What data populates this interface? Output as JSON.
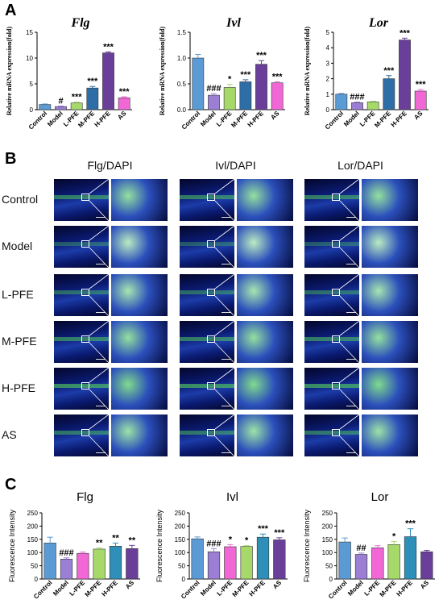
{
  "panels": {
    "a": "A",
    "b": "B",
    "c": "C"
  },
  "section_b": {
    "columns": [
      "Flg/DAPI",
      "Ivl/DAPI",
      "Lor/DAPI"
    ],
    "rows": [
      "Control",
      "Model",
      "L-PFE",
      "M-PFE",
      "H-PFE",
      "AS"
    ]
  },
  "chart_data": [
    {
      "type": "bar",
      "title": "Flg",
      "ylabel": "Relative mRNA expression(fold)",
      "categories": [
        "Control",
        "Model",
        "L-PFE",
        "M-PFE",
        "H-PFE",
        "AS"
      ],
      "values": [
        1.0,
        0.6,
        1.3,
        4.2,
        11.0,
        2.3
      ],
      "errors": [
        0.1,
        0.1,
        0.15,
        0.3,
        0.2,
        0.2
      ],
      "sig": [
        "",
        "#",
        "***",
        "***",
        "***",
        "***"
      ],
      "ylim": [
        0,
        15
      ],
      "yticks": [
        0,
        5,
        10,
        15
      ],
      "colors": [
        "#5b9bd5",
        "#9b7fd4",
        "#a6d96a",
        "#2e6ea6",
        "#6a3f9a",
        "#f067d5"
      ]
    },
    {
      "type": "bar",
      "title": "Ivl",
      "ylabel": "Relative mRNA expression(fold)",
      "categories": [
        "Control",
        "Model",
        "L-PFE",
        "M-PFE",
        "H-PFE",
        "AS"
      ],
      "values": [
        1.0,
        0.28,
        0.43,
        0.54,
        0.88,
        0.52
      ],
      "errors": [
        0.07,
        0.03,
        0.06,
        0.04,
        0.07,
        0.02
      ],
      "sig": [
        "",
        "###",
        "*",
        "***",
        "***",
        "***"
      ],
      "ylim": [
        0,
        1.5
      ],
      "yticks": [
        0.0,
        0.5,
        1.0,
        1.5
      ],
      "colors": [
        "#5b9bd5",
        "#9b7fd4",
        "#a6d96a",
        "#2e6ea6",
        "#6a3f9a",
        "#f067d5"
      ]
    },
    {
      "type": "bar",
      "title": "Lor",
      "ylabel": "Relative mRNA expression(fold)",
      "categories": [
        "Control",
        "Model",
        "L-PFE",
        "M-PFE",
        "H-PFE",
        "AS"
      ],
      "values": [
        1.0,
        0.45,
        0.5,
        2.0,
        4.5,
        1.2
      ],
      "errors": [
        0.05,
        0.05,
        0.05,
        0.2,
        0.12,
        0.1
      ],
      "sig": [
        "",
        "###",
        "",
        "***",
        "***",
        "***"
      ],
      "ylim": [
        0,
        5
      ],
      "yticks": [
        0,
        1,
        2,
        3,
        4,
        5
      ],
      "colors": [
        "#5b9bd5",
        "#9b7fd4",
        "#a6d96a",
        "#2e6ea6",
        "#6a3f9a",
        "#f067d5"
      ]
    },
    {
      "type": "bar",
      "title": "Flg",
      "ylabel": "Fluorescence Intensity",
      "categories": [
        "Control",
        "Model",
        "L-PFE",
        "M-PFE",
        "H-PFE",
        "AS"
      ],
      "values": [
        136,
        75,
        97,
        113,
        124,
        115
      ],
      "errors": [
        22,
        5,
        5,
        5,
        12,
        12
      ],
      "sig": [
        "",
        "###",
        "",
        "**",
        "**",
        "**"
      ],
      "ylim": [
        0,
        250
      ],
      "yticks": [
        0,
        50,
        100,
        150,
        200,
        250
      ],
      "colors": [
        "#5b9bd5",
        "#9b7fd4",
        "#f067d5",
        "#a6d96a",
        "#2e8fb8",
        "#6a3f9a"
      ]
    },
    {
      "type": "bar",
      "title": "Ivl",
      "ylabel": "Fluorescence Intensity",
      "categories": [
        "Control",
        "Model",
        "L-PFE",
        "M-PFE",
        "H-PFE",
        "AS"
      ],
      "values": [
        152,
        103,
        122,
        123,
        158,
        148
      ],
      "errors": [
        7,
        12,
        8,
        3,
        12,
        8
      ],
      "sig": [
        "",
        "###",
        "*",
        "*",
        "***",
        "***"
      ],
      "ylim": [
        0,
        250
      ],
      "yticks": [
        0,
        50,
        100,
        150,
        200,
        250
      ],
      "colors": [
        "#5b9bd5",
        "#9b7fd4",
        "#f067d5",
        "#a6d96a",
        "#2e8fb8",
        "#6a3f9a"
      ]
    },
    {
      "type": "bar",
      "title": "Lor",
      "ylabel": "Fluorescence Intensity",
      "categories": [
        "Control",
        "Model",
        "L-PFE",
        "M-PFE",
        "H-PFE",
        "AS"
      ],
      "values": [
        140,
        93,
        118,
        130,
        160,
        103
      ],
      "errors": [
        15,
        5,
        8,
        12,
        30,
        5
      ],
      "sig": [
        "",
        "##",
        "",
        "*",
        "***",
        ""
      ],
      "ylim": [
        0,
        250
      ],
      "yticks": [
        0,
        50,
        100,
        150,
        200,
        250
      ],
      "colors": [
        "#5b9bd5",
        "#9b7fd4",
        "#f067d5",
        "#a6d96a",
        "#2e8fb8",
        "#6a3f9a"
      ]
    }
  ]
}
